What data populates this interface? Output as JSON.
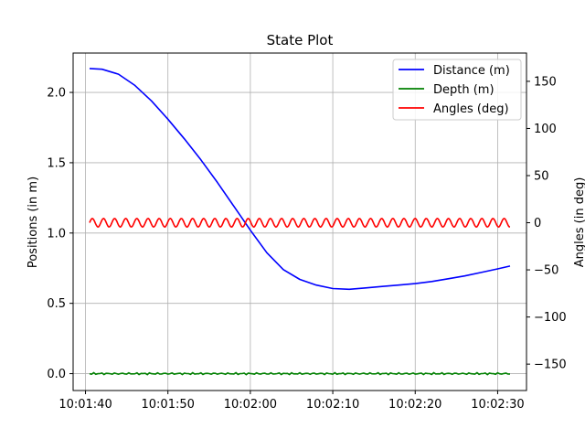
{
  "chart_data": {
    "type": "line",
    "title": "State Plot",
    "ylabel_left": "Positions (in m)",
    "ylabel_right": "Angles (in deg)",
    "xlabel": "",
    "xlim": [
      "10:01:38.5",
      "10:02:33.5"
    ],
    "ylim_left": [
      -0.12,
      2.28
    ],
    "ylim_right": [
      -178,
      180
    ],
    "x_ticks": [
      "10:01:40",
      "10:01:50",
      "10:02:00",
      "10:02:10",
      "10:02:20",
      "10:02:30"
    ],
    "y_ticks_left": [
      0.0,
      0.5,
      1.0,
      1.5,
      2.0
    ],
    "y_tick_labels_left": [
      "0.0",
      "0.5",
      "1.0",
      "1.5",
      "2.0"
    ],
    "y_ticks_right": [
      -150,
      -100,
      -50,
      0,
      50,
      100,
      150
    ],
    "y_tick_labels_right": [
      "−150",
      "−100",
      "−50",
      "0",
      "50",
      "100",
      "150"
    ],
    "grid": true,
    "legend_position": "top-right",
    "legend": [
      "Distance (m)",
      "Depth (m)",
      "Angles (deg)"
    ],
    "series": [
      {
        "name": "Distance (m)",
        "axis": "left",
        "color": "#0000ff",
        "x": [
          "10:01:40.5",
          "10:01:42",
          "10:01:44",
          "10:01:46",
          "10:01:48",
          "10:01:50",
          "10:01:52",
          "10:01:54",
          "10:01:56",
          "10:01:58",
          "10:02:00",
          "10:02:02",
          "10:02:04",
          "10:02:06",
          "10:02:08",
          "10:02:10",
          "10:02:12",
          "10:02:14",
          "10:02:16",
          "10:02:18",
          "10:02:20",
          "10:02:22",
          "10:02:24",
          "10:02:26",
          "10:02:28",
          "10:02:30",
          "10:02:31.5"
        ],
        "y": [
          2.17,
          2.165,
          2.13,
          2.05,
          1.94,
          1.81,
          1.67,
          1.52,
          1.36,
          1.19,
          1.02,
          0.86,
          0.74,
          0.67,
          0.63,
          0.605,
          0.6,
          0.61,
          0.62,
          0.63,
          0.64,
          0.655,
          0.675,
          0.695,
          0.72,
          0.745,
          0.765
        ]
      },
      {
        "name": "Depth (m)",
        "axis": "left",
        "color": "#008000",
        "x": [
          "10:01:40.5",
          "10:02:31.5"
        ],
        "y": [
          0.0,
          0.0
        ]
      },
      {
        "name": "Angles (deg)",
        "axis": "right",
        "color": "#ff0000",
        "x": [
          "10:01:40.5",
          "10:02:31.5"
        ],
        "y": [
          0,
          0
        ],
        "oscillation_amplitude_deg": 4.5
      }
    ]
  }
}
